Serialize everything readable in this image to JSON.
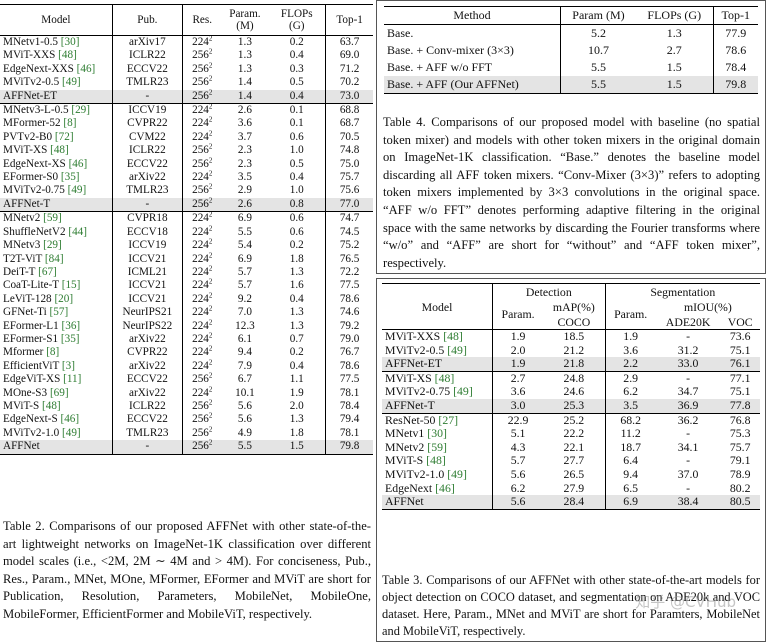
{
  "table2": {
    "headers": [
      "Model",
      "Pub.",
      "Res.",
      "Param.\n(M)",
      "FLOPs\n(G)",
      "Top-1"
    ],
    "groups": [
      {
        "rows": [
          {
            "model": "MNetv1-0.5 ",
            "ref": "[30]",
            "pub": "arXiv17",
            "res": "224",
            "param": "1.3",
            "flops": "0.2",
            "top1": "63.7"
          },
          {
            "model": "MViT-XXS ",
            "ref": "[48]",
            "pub": "ICLR22",
            "res": "256",
            "param": "1.3",
            "flops": "0.4",
            "top1": "69.0"
          },
          {
            "model": "EdgeNext-XXS ",
            "ref": "[46]",
            "pub": "ECCV22",
            "res": "256",
            "param": "1.3",
            "flops": "0.3",
            "top1": "71.2"
          },
          {
            "model": "MViTv2-0.5 ",
            "ref": "[49]",
            "pub": "TMLR23",
            "res": "256",
            "param": "1.4",
            "flops": "0.5",
            "top1": "70.2"
          }
        ],
        "ours": {
          "model": "AFFNet-ET",
          "pub": "-",
          "res": "256",
          "param": "1.4",
          "flops": "0.4",
          "top1": "73.0"
        }
      },
      {
        "rows": [
          {
            "model": "MNetv3-L-0.5 ",
            "ref": "[29]",
            "pub": "ICCV19",
            "res": "224",
            "param": "2.6",
            "flops": "0.1",
            "top1": "68.8"
          },
          {
            "model": "MFormer-52 ",
            "ref": "[8]",
            "pub": "CVPR22",
            "res": "224",
            "param": "3.6",
            "flops": "0.1",
            "top1": "68.7"
          },
          {
            "model": "PVTv2-B0 ",
            "ref": "[72]",
            "pub": "CVM22",
            "res": "224",
            "param": "3.7",
            "flops": "0.6",
            "top1": "70.5"
          },
          {
            "model": "MViT-XS ",
            "ref": "[48]",
            "pub": "ICLR22",
            "res": "256",
            "param": "2.3",
            "flops": "1.0",
            "top1": "74.8"
          },
          {
            "model": "EdgeNext-XS ",
            "ref": "[46]",
            "pub": "ECCV22",
            "res": "256",
            "param": "2.3",
            "flops": "0.5",
            "top1": "75.0"
          },
          {
            "model": "EFormer-S0 ",
            "ref": "[35]",
            "pub": "arXiv22",
            "res": "224",
            "param": "3.5",
            "flops": "0.4",
            "top1": "75.7"
          },
          {
            "model": "MViTv2-0.75 ",
            "ref": "[49]",
            "pub": "TMLR23",
            "res": "256",
            "param": "2.9",
            "flops": "1.0",
            "top1": "75.6"
          }
        ],
        "ours": {
          "model": "AFFNet-T",
          "pub": "-",
          "res": "256",
          "param": "2.6",
          "flops": "0.8",
          "top1": "77.0"
        }
      },
      {
        "rows": [
          {
            "model": "MNetv2 ",
            "ref": "[59]",
            "pub": "CVPR18",
            "res": "224",
            "param": "6.9",
            "flops": "0.6",
            "top1": "74.7"
          },
          {
            "model": "ShuffleNetV2 ",
            "ref": "[44]",
            "pub": "ECCV18",
            "res": "224",
            "param": "5.5",
            "flops": "0.6",
            "top1": "74.5"
          },
          {
            "model": "MNetv3 ",
            "ref": "[29]",
            "pub": "ICCV19",
            "res": "224",
            "param": "5.4",
            "flops": "0.2",
            "top1": "75.2"
          },
          {
            "model": "T2T-ViT ",
            "ref": "[84]",
            "pub": "ICCV21",
            "res": "224",
            "param": "6.9",
            "flops": "1.8",
            "top1": "76.5"
          },
          {
            "model": "DeiT-T ",
            "ref": "[67]",
            "pub": "ICML21",
            "res": "224",
            "param": "5.7",
            "flops": "1.3",
            "top1": "72.2"
          },
          {
            "model": "CoaT-Lite-T ",
            "ref": "[15]",
            "pub": "ICCV21",
            "res": "224",
            "param": "5.7",
            "flops": "1.6",
            "top1": "77.5"
          },
          {
            "model": "LeViT-128 ",
            "ref": "[20]",
            "pub": "ICCV21",
            "res": "224",
            "param": "9.2",
            "flops": "0.4",
            "top1": "78.6"
          },
          {
            "model": "GFNet-Ti ",
            "ref": "[57]",
            "pub": "NeurIPS21",
            "res": "224",
            "param": "7.0",
            "flops": "1.3",
            "top1": "74.6"
          },
          {
            "model": "EFormer-L1 ",
            "ref": "[36]",
            "pub": "NeurIPS22",
            "res": "224",
            "param": "12.3",
            "flops": "1.3",
            "top1": "79.2"
          },
          {
            "model": "EFormer-S1 ",
            "ref": "[35]",
            "pub": "arXiv22",
            "res": "224",
            "param": "6.1",
            "flops": "0.7",
            "top1": "79.0"
          },
          {
            "model": "Mformer ",
            "ref": "[8]",
            "pub": "CVPR22",
            "res": "224",
            "param": "9.4",
            "flops": "0.2",
            "top1": "76.7"
          },
          {
            "model": "EfficientViT ",
            "ref": "[3]",
            "pub": "arXiv22",
            "res": "224",
            "param": "7.9",
            "flops": "0.4",
            "top1": "78.6"
          },
          {
            "model": "EdgeViT-XS ",
            "ref": "[11]",
            "pub": "ECCV22",
            "res": "256",
            "param": "6.7",
            "flops": "1.1",
            "top1": "77.5"
          },
          {
            "model": "MOne-S3 ",
            "ref": "[69]",
            "pub": "arXiv22",
            "res": "224",
            "param": "10.1",
            "flops": "1.9",
            "top1": "78.1"
          },
          {
            "model": "MViT-S ",
            "ref": "[48]",
            "pub": "ICLR22",
            "res": "256",
            "param": "5.6",
            "flops": "2.0",
            "top1": "78.4"
          },
          {
            "model": "EdgeNext-S ",
            "ref": "[46]",
            "pub": "ECCV22",
            "res": "256",
            "param": "5.6",
            "flops": "1.3",
            "top1": "79.4"
          },
          {
            "model": "MViTv2-1.0 ",
            "ref": "[49]",
            "pub": "TMLR23",
            "res": "256",
            "param": "4.9",
            "flops": "1.8",
            "top1": "78.1"
          }
        ],
        "ours": {
          "model": "AFFNet",
          "pub": "-",
          "res": "256",
          "param": "5.5",
          "flops": "1.5",
          "top1": "79.8"
        }
      }
    ],
    "res_exponent": "2",
    "caption": "Table 2. Comparisons of our proposed AFFNet with other state-of-the-art lightweight networks on ImageNet-1K classification over different model scales (i.e., <2M, 2M ∼ 4M and > 4M). For conciseness, Pub., Res., Param., MNet, MOne, MFormer, EFormer and MViT are short for Publication, Resolution, Parameters, MobileNet, MobileOne, MobileFormer, EfficientFormer and MobileViT, respectively."
  },
  "table4": {
    "headers": [
      "Method",
      "Param (M)",
      "FLOPs (G)",
      "Top-1"
    ],
    "rows": [
      {
        "method": "Base.",
        "param": "5.2",
        "flops": "1.3",
        "top1": "77.9"
      },
      {
        "method": "Base. + Conv-mixer (3×3)",
        "param": "10.7",
        "flops": "2.7",
        "top1": "78.6"
      },
      {
        "method": "Base. + AFF w/o FFT",
        "param": "5.5",
        "flops": "1.5",
        "top1": "78.4"
      },
      {
        "method": "Base. + AFF  (Our AFFNet)",
        "param": "5.5",
        "flops": "1.5",
        "top1": "79.8"
      }
    ],
    "caption": "Table 4. Comparisons of our proposed model with baseline (no spatial token mixer) and models with other token mixers in the original domain on ImageNet-1K classification. “Base.” denotes the baseline model discarding all AFF token mixers. “Conv-Mixer (3×3)” refers to adopting token mixers implemented by 3×3 convolutions in the original space. “AFF w/o FFT” denotes performing adaptive filtering in the original space with the same networks by discarding the Fourier transforms where “w/o” and “AFF” are short for “without” and “AFF token mixer”, respectively."
  },
  "table3": {
    "h_model": "Model",
    "h_detection": "Detection",
    "h_segmentation": "Segmentation",
    "h_param": "Param.",
    "h_map": "mAP(%)",
    "h_coco": "COCO",
    "h_miou": "mIOU(%)",
    "h_ade": "ADE20K",
    "h_voc": "VOC",
    "groups": [
      {
        "rows": [
          {
            "model": "MViT-XXS ",
            "ref": "[48]",
            "dp": "1.9",
            "map": "18.5",
            "sp": "1.9",
            "ade": "-",
            "voc": "73.6"
          },
          {
            "model": "MViTv2-0.5 ",
            "ref": "[49]",
            "dp": "2.0",
            "map": "21.2",
            "sp": "3.6",
            "ade": "31.2",
            "voc": "75.1"
          }
        ],
        "ours": {
          "model": "AFFNet-ET",
          "dp": "1.9",
          "map": "21.8",
          "sp": "2.2",
          "ade": "33.0",
          "voc": "76.1"
        }
      },
      {
        "rows": [
          {
            "model": "MViT-XS ",
            "ref": "[48]",
            "dp": "2.7",
            "map": "24.8",
            "sp": "2.9",
            "ade": "-",
            "voc": "77.1"
          },
          {
            "model": "MViTv2-0.75 ",
            "ref": "[49]",
            "dp": "3.6",
            "map": "24.6",
            "sp": "6.2",
            "ade": "34.7",
            "voc": "75.1"
          }
        ],
        "ours": {
          "model": "AFFNet-T",
          "dp": "3.0",
          "map": "25.3",
          "sp": "3.5",
          "ade": "36.9",
          "voc": "77.8"
        }
      },
      {
        "rows": [
          {
            "model": "ResNet-50 ",
            "ref": "[27]",
            "dp": "22.9",
            "map": "25.2",
            "sp": "68.2",
            "ade": "36.2",
            "voc": "76.8"
          },
          {
            "model": "MNetv1 ",
            "ref": "[30]",
            "dp": "5.1",
            "map": "22.2",
            "sp": "11.2",
            "ade": "-",
            "voc": "75.3"
          },
          {
            "model": "MNetv2 ",
            "ref": "[59]",
            "dp": "4.3",
            "map": "22.1",
            "sp": "18.7",
            "ade": "34.1",
            "voc": "75.7"
          },
          {
            "model": "MViT-S ",
            "ref": "[48]",
            "dp": "5.7",
            "map": "27.7",
            "sp": "6.4",
            "ade": "-",
            "voc": "79.1"
          },
          {
            "model": "MViTv2-1.0 ",
            "ref": "[49]",
            "dp": "5.6",
            "map": "26.5",
            "sp": "9.4",
            "ade": "37.0",
            "voc": "78.9"
          },
          {
            "model": "EdgeNext ",
            "ref": "[46]",
            "dp": "6.2",
            "map": "27.9",
            "sp": "6.5",
            "ade": "-",
            "voc": "80.2"
          }
        ],
        "ours": {
          "model": "AFFNet",
          "dp": "5.6",
          "map": "28.4",
          "sp": "6.9",
          "ade": "38.4",
          "voc": "80.5"
        }
      }
    ],
    "caption": "Table 3. Comparisons of our AFFNet with other state-of-the-art models for object detection on COCO dataset, and segmentation on ADE20k and VOC dataset. Here, Param., MNet and MViT are short for Paramters, MobileNet and MobileViT, respectively."
  },
  "watermark": "知乎 @CVHub"
}
